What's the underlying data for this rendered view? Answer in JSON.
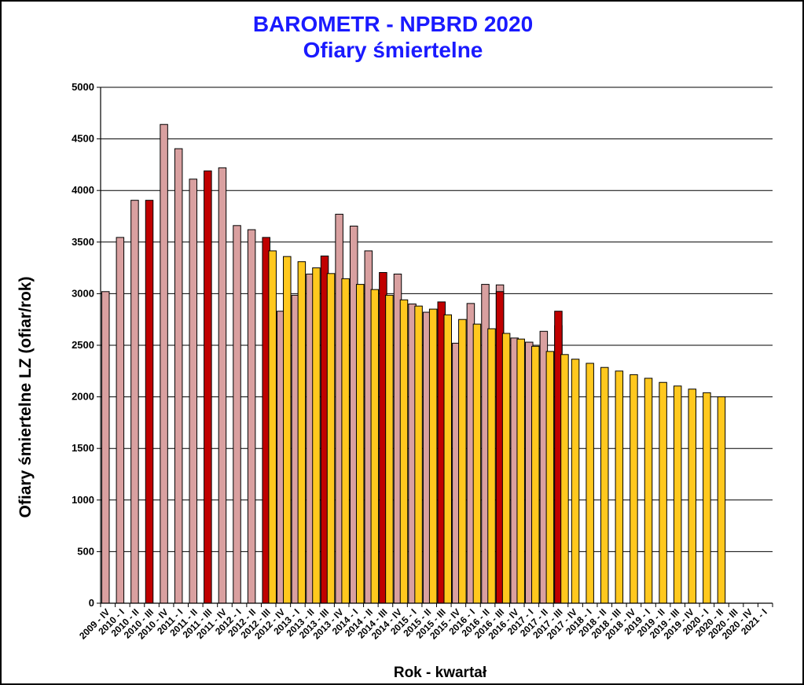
{
  "chart_data": {
    "type": "bar",
    "title": "BAROMETR - NPBRD 2020",
    "subtitle": "Ofiary śmiertelne",
    "xlabel": "Rok - kwartał",
    "ylabel": "Ofiary śmiertelne LZ (ofiar/rok)",
    "ylim": [
      0,
      5000
    ],
    "yticks": [
      "0",
      "500",
      "1000",
      "1500",
      "2000",
      "2500",
      "3000",
      "3500",
      "4000",
      "4500",
      "5000"
    ],
    "grid": true,
    "legend": "none",
    "categories": [
      "2009 - IV",
      "2010 - I",
      "2010 - II",
      "2010 - III",
      "2010 - IV",
      "2011 - I",
      "2011 - II",
      "2011 - III",
      "2011 - IV",
      "2012 - I",
      "2012 - II",
      "2012 - III",
      "2012 - IV",
      "2013 - I",
      "2013 - II",
      "2013 - III",
      "2013 - IV",
      "2014 - I",
      "2014 - II",
      "2014 - III",
      "2014 - IV",
      "2015 - I",
      "2015 - II",
      "2015 - III",
      "2015 - IV",
      "2016 - I",
      "2016 - II",
      "2016 - III",
      "2016 - IV",
      "2017 - I",
      "2017 - II",
      "2017 - III",
      "2017 - IV",
      "2018 - I",
      "2018 - II",
      "2018 - III",
      "2018 - IV",
      "2019 - I",
      "2019 - II",
      "2019 - III",
      "2019 - IV",
      "2020 - I",
      "2020 - II",
      "2020 - III",
      "2020 - IV",
      "2021 - I"
    ],
    "series": [
      {
        "values": [
          3020,
          3545,
          3905,
          null,
          4640,
          4405,
          4110,
          null,
          4220,
          3660,
          3620,
          null,
          2830,
          2985,
          3190,
          null,
          3770,
          3655,
          3415,
          null,
          3190,
          2900,
          2820,
          null,
          2520,
          2905,
          3090,
          3085,
          2570,
          2530,
          2635,
          2690,
          null,
          null,
          null,
          null,
          null,
          null,
          null,
          null,
          null,
          null,
          null,
          null,
          null,
          null
        ],
        "color": "#d9a0a0"
      },
      {
        "values": [
          null,
          null,
          null,
          3905,
          null,
          null,
          null,
          4190,
          null,
          null,
          null,
          3545,
          null,
          null,
          null,
          3365,
          null,
          null,
          null,
          3205,
          null,
          null,
          null,
          2920,
          null,
          null,
          null,
          3020,
          null,
          null,
          null,
          2830,
          null,
          null,
          null,
          null,
          null,
          null,
          null,
          null,
          null,
          null,
          null,
          null,
          null,
          null
        ],
        "color": "#c00000"
      },
      {
        "values": [
          null,
          null,
          null,
          null,
          null,
          null,
          null,
          null,
          null,
          null,
          null,
          3415,
          3360,
          3310,
          3250,
          3195,
          3145,
          3090,
          3040,
          2985,
          2940,
          2880,
          2850,
          2795,
          2750,
          2705,
          2660,
          2615,
          2560,
          2490,
          2440,
          2410,
          2365,
          2325,
          2285,
          2250,
          2215,
          2180,
          2140,
          2105,
          2075,
          2040,
          2000,
          null,
          null,
          null
        ],
        "color": "#ffc81e"
      }
    ]
  }
}
